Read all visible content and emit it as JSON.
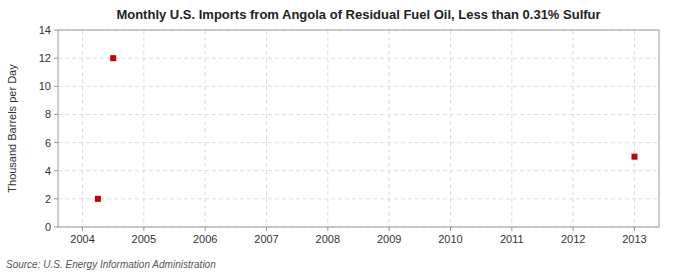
{
  "chart_data": {
    "type": "scatter",
    "title": "Monthly U.S. Imports from Angola of Residual Fuel Oil, Less than 0.31% Sulfur",
    "ylabel": "Thousand Barrels per Day",
    "source": "Source: U.S. Energy Information Administration",
    "x": [
      2004.25,
      2004.5,
      2013.0
    ],
    "values": [
      2,
      12,
      5
    ],
    "color": "#cc0000",
    "marker": "square",
    "xlim": [
      2003.6,
      2013.4
    ],
    "ylim": [
      0,
      14
    ],
    "xticks": [
      2004,
      2005,
      2006,
      2007,
      2008,
      2009,
      2010,
      2011,
      2012,
      2013
    ],
    "yticks": [
      0,
      2,
      4,
      6,
      8,
      10,
      12,
      14
    ],
    "grid": true
  }
}
